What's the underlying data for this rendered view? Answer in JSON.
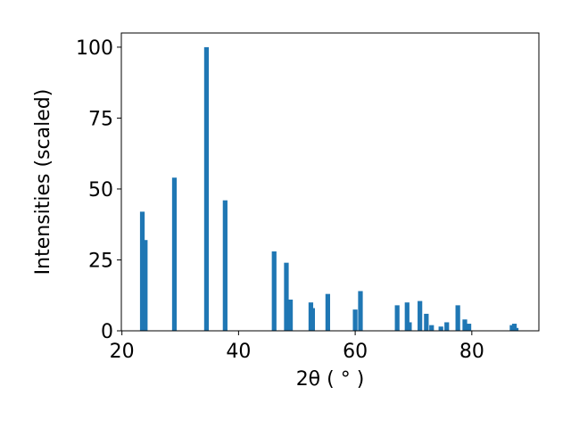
{
  "chart_data": {
    "type": "bar",
    "x_label": "2θ ( ° )",
    "y_label": "Intensities (scaled)",
    "color": "#1f77b4",
    "x": [
      23.5,
      24.0,
      29.0,
      34.5,
      37.7,
      46.1,
      48.2,
      48.9,
      52.4,
      52.7,
      55.3,
      60.0,
      60.9,
      67.2,
      68.9,
      69.3,
      71.1,
      72.2,
      73.1,
      74.7,
      75.7,
      77.6,
      78.8,
      79.5,
      86.9,
      87.3,
      87.6
    ],
    "values": [
      42,
      32,
      54,
      100,
      46,
      28,
      24,
      11,
      10,
      8,
      13,
      7.5,
      14,
      9,
      10,
      3,
      10.5,
      6,
      2,
      1.5,
      3,
      9,
      4,
      2.5,
      2,
      2.5,
      1
    ],
    "xlim": [
      19.9,
      91.5
    ],
    "ylim": [
      0,
      105
    ],
    "xticks": [
      20,
      40,
      60,
      80
    ],
    "yticks": [
      0,
      25,
      50,
      75,
      100
    ]
  }
}
